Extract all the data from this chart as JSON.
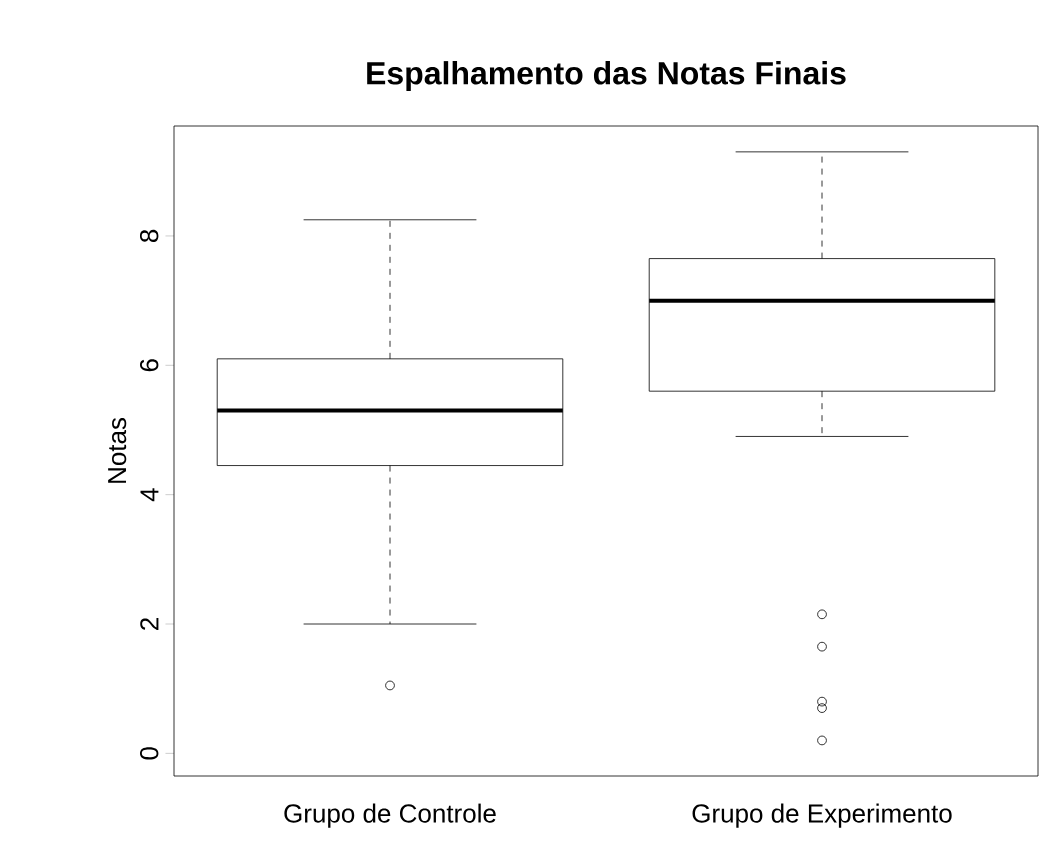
{
  "chart_data": {
    "type": "box",
    "title": "Espalhamento das Notas Finais",
    "ylabel": "Notas",
    "categories": [
      "Grupo  de  Controle",
      "Grupo  de  Experimento"
    ],
    "boxes": [
      {
        "low": 2.0,
        "q1": 4.45,
        "median": 5.3,
        "q3": 6.1,
        "high": 8.25,
        "outliers": [
          1.05
        ]
      },
      {
        "low": 4.9,
        "q1": 5.6,
        "median": 7.0,
        "q3": 7.65,
        "high": 9.3,
        "outliers": [
          2.15,
          1.65,
          0.8,
          0.7,
          0.2
        ]
      }
    ],
    "ylim": [
      -0.35,
      9.7
    ],
    "yticks": [
      0,
      2,
      4,
      6,
      8
    ],
    "color": "#000000",
    "marker": "circle"
  }
}
